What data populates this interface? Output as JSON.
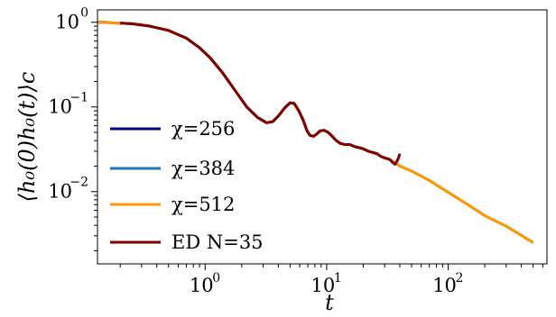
{
  "chart_data": {
    "type": "line",
    "title": "",
    "xlabel": "t",
    "ylabel": "⟨h₀(0)h₀(t)⟩c",
    "x_scale": "log",
    "y_scale": "log",
    "xlim": [
      0.13,
      650
    ],
    "ylim": [
      0.0014,
      1.4
    ],
    "x_ticks": [
      {
        "value": 1,
        "mantissa": "10",
        "exponent": "0"
      },
      {
        "value": 10,
        "mantissa": "10",
        "exponent": "1"
      },
      {
        "value": 100,
        "mantissa": "10",
        "exponent": "2"
      }
    ],
    "y_ticks": [
      {
        "value": 1,
        "mantissa": "10",
        "exponent": "0"
      },
      {
        "value": 0.1,
        "mantissa": "10",
        "exponent": "−1"
      },
      {
        "value": 0.01,
        "mantissa": "10",
        "exponent": "−2"
      }
    ],
    "grid": false,
    "legend": {
      "placement": "lower-left",
      "entries": [
        {
          "label": "χ=256",
          "color": "#00007f"
        },
        {
          "label": "χ=384",
          "color": "#1f77b4"
        },
        {
          "label": "χ=512",
          "color": "#ff9900"
        },
        {
          "label": "ED N=35",
          "color": "#800000"
        }
      ]
    },
    "series": [
      {
        "name": "χ=256",
        "color": "#00007f",
        "x": [
          0.13,
          0.15,
          0.18,
          0.25,
          0.35,
          0.5,
          0.7,
          0.9,
          1.1,
          1.4,
          1.8,
          2.2,
          2.7,
          3.2,
          3.6,
          4.0,
          4.5,
          5.0,
          5.4,
          5.9,
          6.4,
          6.9,
          7.3,
          7.8,
          8.3,
          8.8,
          9.5,
          10.3,
          11.1,
          12.0,
          13.0,
          14.0,
          15.5,
          17.0,
          18.5,
          20.0,
          22.0,
          24.0,
          26.0,
          28.0,
          30.0,
          33.0,
          36.0,
          38.0,
          40.0
        ],
        "y": [
          1.0,
          1.0,
          0.98,
          0.96,
          0.9,
          0.8,
          0.65,
          0.5,
          0.38,
          0.25,
          0.15,
          0.1,
          0.075,
          0.065,
          0.067,
          0.078,
          0.097,
          0.112,
          0.11,
          0.09,
          0.07,
          0.052,
          0.046,
          0.045,
          0.048,
          0.052,
          0.053,
          0.05,
          0.045,
          0.04,
          0.037,
          0.036,
          0.036,
          0.034,
          0.033,
          0.032,
          0.03,
          0.029,
          0.028,
          0.026,
          0.025,
          0.024,
          0.022,
          0.021,
          0.02
        ]
      },
      {
        "name": "χ=384",
        "color": "#1f77b4",
        "x": [
          0.13,
          0.15,
          0.18,
          0.25,
          0.35,
          0.5,
          0.7,
          0.9,
          1.1,
          1.4,
          1.8,
          2.2,
          2.7,
          3.2,
          3.6,
          4.0,
          4.5,
          5.0,
          5.4,
          5.9,
          6.4,
          6.9,
          7.3,
          7.8,
          8.3,
          8.8,
          9.5,
          10.3,
          11.1,
          12.0,
          13.0,
          14.0,
          15.5,
          17.0,
          18.5,
          20.0,
          22.0,
          24.0,
          26.0,
          28.0,
          30.0,
          33.0,
          36.0,
          38.0,
          40.0,
          50.0,
          70.0,
          100.0,
          150.0,
          200.0,
          300.0,
          500.0
        ],
        "y": [
          1.0,
          1.0,
          0.98,
          0.96,
          0.9,
          0.8,
          0.65,
          0.5,
          0.38,
          0.25,
          0.15,
          0.1,
          0.075,
          0.065,
          0.067,
          0.078,
          0.097,
          0.112,
          0.11,
          0.09,
          0.07,
          0.052,
          0.046,
          0.045,
          0.048,
          0.052,
          0.053,
          0.05,
          0.045,
          0.04,
          0.037,
          0.036,
          0.036,
          0.034,
          0.033,
          0.032,
          0.03,
          0.029,
          0.028,
          0.026,
          0.025,
          0.024,
          0.022,
          0.021,
          0.02,
          0.0175,
          0.0135,
          0.0098,
          0.0068,
          0.0052,
          0.0039,
          0.0025
        ]
      },
      {
        "name": "χ=512",
        "color": "#ff9900",
        "x": [
          0.13,
          0.15,
          0.18,
          0.25,
          0.35,
          0.5,
          0.7,
          0.9,
          1.1,
          1.4,
          1.8,
          2.2,
          2.7,
          3.2,
          3.6,
          4.0,
          4.5,
          5.0,
          5.4,
          5.9,
          6.4,
          6.9,
          7.3,
          7.8,
          8.3,
          8.8,
          9.5,
          10.3,
          11.1,
          12.0,
          13.0,
          14.0,
          15.5,
          17.0,
          18.5,
          20.0,
          22.0,
          24.0,
          26.0,
          28.0,
          30.0,
          33.0,
          36.0,
          38.0,
          40.0,
          50.0,
          70.0,
          100.0,
          150.0,
          200.0,
          300.0,
          500.0
        ],
        "y": [
          1.0,
          1.0,
          0.98,
          0.96,
          0.9,
          0.8,
          0.65,
          0.5,
          0.38,
          0.25,
          0.15,
          0.1,
          0.075,
          0.065,
          0.067,
          0.078,
          0.097,
          0.112,
          0.11,
          0.09,
          0.07,
          0.052,
          0.046,
          0.045,
          0.048,
          0.052,
          0.053,
          0.05,
          0.045,
          0.04,
          0.037,
          0.036,
          0.036,
          0.034,
          0.033,
          0.032,
          0.03,
          0.029,
          0.028,
          0.026,
          0.025,
          0.024,
          0.022,
          0.021,
          0.02,
          0.0175,
          0.0135,
          0.0098,
          0.0068,
          0.0052,
          0.0039,
          0.0025
        ]
      },
      {
        "name": "ED N=35",
        "color": "#800000",
        "x": [
          0.2,
          0.25,
          0.35,
          0.5,
          0.7,
          0.9,
          1.1,
          1.4,
          1.8,
          2.2,
          2.7,
          3.2,
          3.6,
          4.0,
          4.5,
          5.0,
          5.4,
          5.9,
          6.4,
          6.9,
          7.3,
          7.8,
          8.3,
          8.8,
          9.5,
          10.3,
          11.1,
          12.0,
          13.0,
          14.0,
          15.5,
          17.0,
          18.5,
          20.0,
          22.0,
          24.0,
          26.0,
          28.0,
          30.0,
          33.0,
          35.0,
          36.5,
          38.0,
          39.0,
          40.0
        ],
        "y": [
          0.98,
          0.96,
          0.9,
          0.8,
          0.65,
          0.5,
          0.38,
          0.25,
          0.15,
          0.1,
          0.075,
          0.065,
          0.067,
          0.078,
          0.097,
          0.112,
          0.11,
          0.09,
          0.07,
          0.052,
          0.046,
          0.045,
          0.048,
          0.052,
          0.053,
          0.05,
          0.045,
          0.04,
          0.037,
          0.036,
          0.036,
          0.034,
          0.033,
          0.032,
          0.03,
          0.029,
          0.028,
          0.026,
          0.025,
          0.024,
          0.022,
          0.021,
          0.023,
          0.025,
          0.028
        ]
      }
    ]
  }
}
